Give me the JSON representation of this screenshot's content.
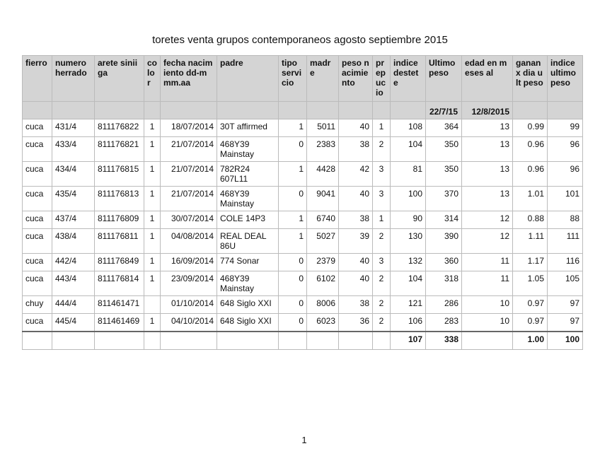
{
  "title": "toretes venta grupos contemporaneos agosto septiembre 2015",
  "table": {
    "header": [
      "fierro",
      "numero herrado",
      "arete siniiga",
      "color",
      "fecha nacimiento dd-mmm.aa",
      "padre",
      "tipo servicio",
      "madre",
      "peso nacimiento",
      "prepucio",
      "indice destete",
      "Ultimo peso",
      "edad en meses al",
      "ganan x dia ult peso",
      "indice ultimo peso"
    ],
    "subheader": [
      null,
      null,
      null,
      null,
      null,
      null,
      null,
      null,
      null,
      null,
      null,
      "22/7/15",
      "12/8/2015",
      null,
      null
    ],
    "rows": [
      [
        "cuca",
        "431/4",
        "811176822",
        1,
        "18/07/2014",
        "30T affirmed",
        1,
        5011,
        40,
        1,
        108,
        364,
        13,
        0.99,
        99
      ],
      [
        "cuca",
        "433/4",
        "811176821",
        1,
        "21/07/2014",
        "468Y39 Mainstay",
        0,
        2383,
        38,
        2,
        104,
        350,
        13,
        0.96,
        96
      ],
      [
        "cuca",
        "434/4",
        "811176815",
        1,
        "21/07/2014",
        "782R24 607L11",
        1,
        4428,
        42,
        3,
        81,
        350,
        13,
        0.96,
        96
      ],
      [
        "cuca",
        "435/4",
        "811176813",
        1,
        "21/07/2014",
        "468Y39 Mainstay",
        0,
        9041,
        40,
        3,
        100,
        370,
        13,
        1.01,
        101
      ],
      [
        "cuca",
        "437/4",
        "811176809",
        1,
        "30/07/2014",
        "COLE 14P3",
        1,
        6740,
        38,
        1,
        90,
        314,
        12,
        0.88,
        88
      ],
      [
        "cuca",
        "438/4",
        "811176811",
        1,
        "04/08/2014",
        "REAL DEAL 86U",
        1,
        5027,
        39,
        2,
        130,
        390,
        12,
        1.11,
        111
      ],
      [
        "cuca",
        "442/4",
        "811176849",
        1,
        "16/09/2014",
        "774 Sonar",
        0,
        2379,
        40,
        3,
        132,
        360,
        11,
        1.17,
        116
      ],
      [
        "cuca",
        "443/4",
        "811176814",
        1,
        "23/09/2014",
        "468Y39 Mainstay",
        0,
        6102,
        40,
        2,
        104,
        318,
        11,
        1.05,
        105
      ],
      [
        "chuy",
        "444/4",
        "811461471",
        null,
        "01/10/2014",
        "648 Siglo XXI",
        0,
        8006,
        38,
        2,
        121,
        286,
        10,
        0.97,
        97
      ],
      [
        "cuca",
        "445/4",
        "811461469",
        1,
        "04/10/2014",
        "648 Siglo XXI",
        0,
        6023,
        36,
        2,
        106,
        283,
        10,
        0.97,
        97
      ]
    ],
    "totals": [
      null,
      null,
      null,
      null,
      null,
      null,
      null,
      null,
      null,
      null,
      107,
      338,
      null,
      "1.00",
      100
    ]
  },
  "page_number": "1"
}
